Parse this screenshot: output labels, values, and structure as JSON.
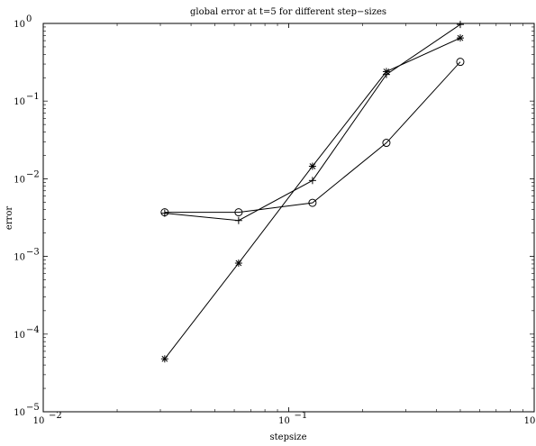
{
  "chart_data": {
    "type": "line",
    "title": "global error at t=5 for different step−sizes",
    "xlabel": "stepsize",
    "ylabel": "error",
    "xscale": "log",
    "yscale": "log",
    "xlim": [
      0.01,
      1
    ],
    "ylim": [
      1e-05,
      1
    ],
    "grid": false,
    "x_ticks": [
      {
        "value": 0.01,
        "base": "10",
        "exp": "−2"
      },
      {
        "value": 0.1,
        "base": "10",
        "exp": "−1"
      },
      {
        "value": 1,
        "base": "10",
        "exp": "0"
      }
    ],
    "y_ticks": [
      {
        "value": 1e-05,
        "base": "10",
        "exp": "−5"
      },
      {
        "value": 0.0001,
        "base": "10",
        "exp": "−4"
      },
      {
        "value": 0.001,
        "base": "10",
        "exp": "−3"
      },
      {
        "value": 0.01,
        "base": "10",
        "exp": "−2"
      },
      {
        "value": 0.1,
        "base": "10",
        "exp": "−1"
      },
      {
        "value": 1,
        "base": "10",
        "exp": "0"
      }
    ],
    "series": [
      {
        "marker": "circle",
        "color": "#000000",
        "points": [
          {
            "x": 0.03125,
            "y": 0.0037
          },
          {
            "x": 0.0625,
            "y": 0.0037
          },
          {
            "x": 0.125,
            "y": 0.0049
          },
          {
            "x": 0.25,
            "y": 0.029
          },
          {
            "x": 0.5,
            "y": 0.32
          }
        ]
      },
      {
        "marker": "plus",
        "color": "#000000",
        "points": [
          {
            "x": 0.03125,
            "y": 0.0036
          },
          {
            "x": 0.0625,
            "y": 0.0029
          },
          {
            "x": 0.125,
            "y": 0.0095
          },
          {
            "x": 0.25,
            "y": 0.22
          },
          {
            "x": 0.5,
            "y": 0.97
          }
        ]
      },
      {
        "marker": "star",
        "color": "#000000",
        "points": [
          {
            "x": 0.03125,
            "y": 4.8e-05
          },
          {
            "x": 0.0625,
            "y": 0.00082
          },
          {
            "x": 0.125,
            "y": 0.0145
          },
          {
            "x": 0.25,
            "y": 0.24
          },
          {
            "x": 0.5,
            "y": 0.65
          }
        ]
      }
    ]
  }
}
